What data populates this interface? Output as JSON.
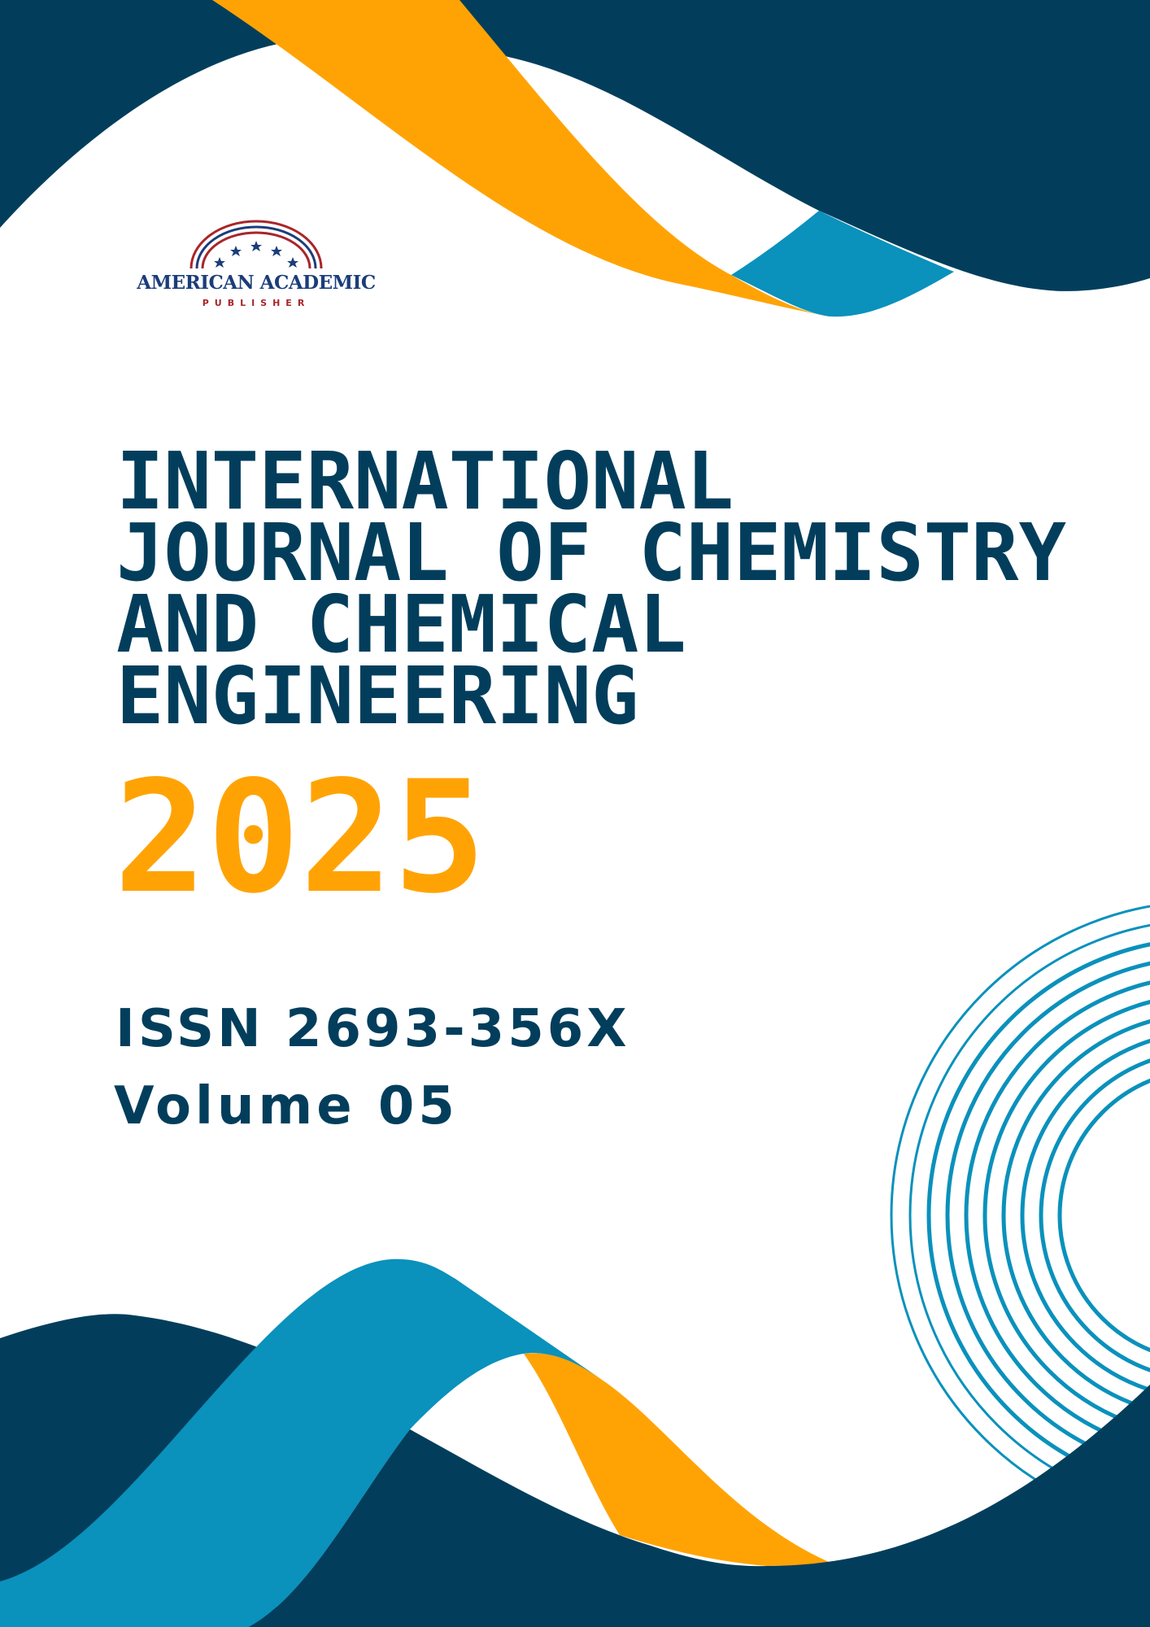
{
  "colors": {
    "navy": "#023E5C",
    "orange": "#FFA305",
    "blue": "#0A91BC",
    "logo_blue": "#1B3D7A",
    "logo_red": "#A8262A"
  },
  "publisher": {
    "name": "AMERICAN ACADEMIC",
    "sub": "PUBLISHER"
  },
  "journal": {
    "title_lines": [
      "INTERNATIONAL",
      "JOURNAL OF CHEMISTRY",
      "AND CHEMICAL",
      "ENGINEERING"
    ],
    "year": "2025",
    "issn": "ISSN 2693-356X",
    "volume": "Volume 05"
  }
}
